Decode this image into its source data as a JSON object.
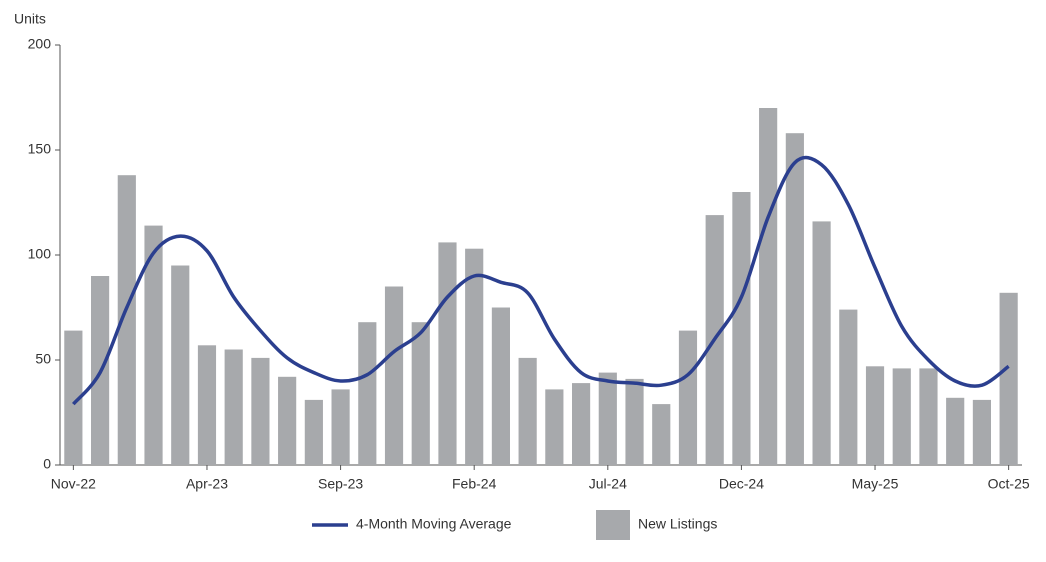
{
  "chart_data": {
    "type": "bar_line",
    "y_label": "Units",
    "categories": [
      "Nov-22",
      null,
      null,
      null,
      null,
      "Apr-23",
      null,
      null,
      null,
      null,
      "Sep-23",
      null,
      null,
      null,
      null,
      "Feb-24",
      null,
      null,
      null,
      null,
      "Jul-24",
      null,
      null,
      null,
      null,
      "Dec-24",
      null,
      null,
      null,
      null,
      "May-25",
      null,
      null,
      null,
      null,
      "Oct-25"
    ],
    "series": [
      {
        "name": "New Listings",
        "type": "bar",
        "color": "#a7a9ac",
        "values": [
          64,
          90,
          138,
          114,
          95,
          57,
          55,
          51,
          42,
          31,
          36,
          68,
          85,
          68,
          106,
          103,
          75,
          51,
          36,
          39,
          44,
          41,
          29,
          64,
          119,
          130,
          170,
          158,
          116,
          74,
          47,
          46,
          46,
          32,
          31,
          82
        ]
      },
      {
        "name": "4-Month Moving Average",
        "type": "line",
        "color": "#2b3f8f",
        "values": [
          29,
          44,
          75,
          101,
          109,
          102,
          80,
          64,
          51,
          44,
          40,
          43,
          54,
          63,
          80,
          90,
          87,
          82,
          60,
          44,
          40,
          39,
          38,
          43,
          60,
          80,
          118,
          144,
          143,
          124,
          94,
          66,
          50,
          40,
          38,
          47
        ]
      }
    ],
    "ylim": [
      0,
      200
    ],
    "yticks": [
      0,
      50,
      100,
      150,
      200
    ],
    "grid": false,
    "legend": "bottom"
  }
}
